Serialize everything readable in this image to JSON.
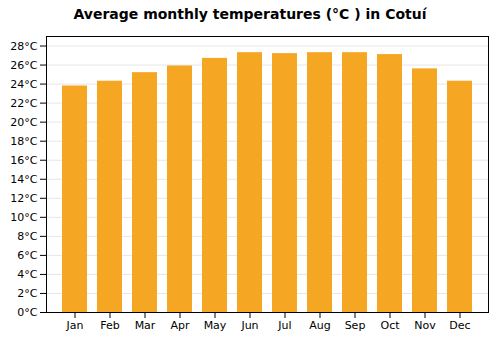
{
  "chart_data": {
    "type": "bar",
    "title": "Average monthly temperatures (°C ) in Cotuí",
    "categories": [
      "Jan",
      "Feb",
      "Mar",
      "Apr",
      "May",
      "Jun",
      "Jul",
      "Aug",
      "Sep",
      "Oct",
      "Nov",
      "Dec"
    ],
    "values": [
      23.8,
      24.3,
      25.2,
      25.9,
      26.7,
      27.3,
      27.2,
      27.3,
      27.3,
      27.1,
      25.6,
      24.3
    ],
    "color": "#F5A623",
    "ylim": [
      0,
      29
    ],
    "yticks": [
      {
        "value": 0,
        "label": "0°C"
      },
      {
        "value": 2,
        "label": "2°C"
      },
      {
        "value": 4,
        "label": "4°C"
      },
      {
        "value": 6,
        "label": "6°C"
      },
      {
        "value": 8,
        "label": "8°C"
      },
      {
        "value": 10,
        "label": "10°C"
      },
      {
        "value": 12,
        "label": "12°C"
      },
      {
        "value": 14,
        "label": "14°C"
      },
      {
        "value": 16,
        "label": "16°C"
      },
      {
        "value": 18,
        "label": "18°C"
      },
      {
        "value": 20,
        "label": "20°C"
      },
      {
        "value": 22,
        "label": "22°C"
      },
      {
        "value": 24,
        "label": "24°C"
      },
      {
        "value": 26,
        "label": "26°C"
      },
      {
        "value": 28,
        "label": "28°C"
      }
    ],
    "grid": true
  }
}
